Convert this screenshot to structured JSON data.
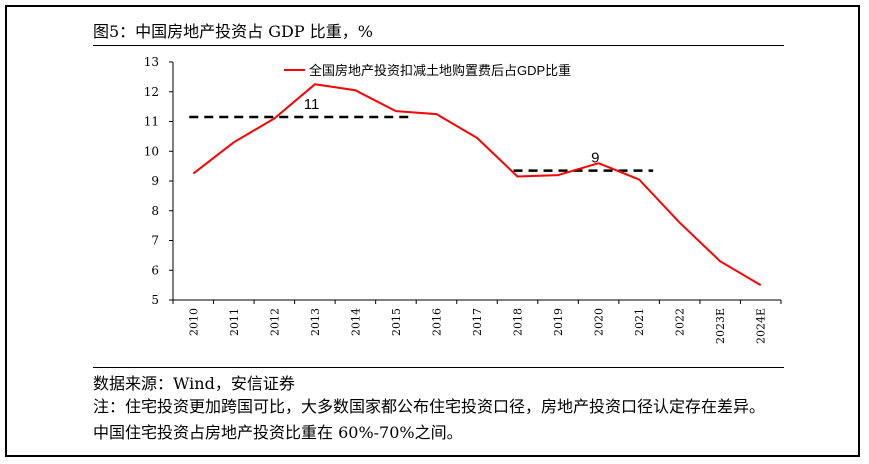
{
  "figure": {
    "title": "图5：中国房地产投资占 GDP 比重，%",
    "source": "数据来源：Wind，安信证券",
    "note": "注：住宅投资更加跨国可比，大多数国家都公布住宅投资口径，房地产投资口径认定存在差异。中国住宅投资占房地产投资比重在 60%-70%之间。"
  },
  "chart_data": {
    "type": "line",
    "title": "",
    "xlabel": "",
    "ylabel": "",
    "categories": [
      "2010",
      "2011",
      "2012",
      "2013",
      "2014",
      "2015",
      "2016",
      "2017",
      "2018",
      "2019",
      "2020",
      "2021",
      "2022",
      "2023E",
      "2024E"
    ],
    "series": [
      {
        "name": "全国房地产投资扣减土地购置费后占GDP比重",
        "color": "#ff0000",
        "values": [
          9.25,
          10.3,
          11.1,
          12.25,
          12.05,
          11.35,
          11.25,
          10.45,
          9.15,
          9.2,
          9.6,
          9.05,
          7.6,
          6.3,
          5.5
        ]
      }
    ],
    "ylim": [
      5,
      13
    ],
    "yticks": [
      5,
      6,
      7,
      8,
      9,
      10,
      11,
      12,
      13
    ],
    "grid": false,
    "legend": {
      "position": "top-center"
    },
    "reference_lines": [
      {
        "label": "11",
        "value": 11.15,
        "from": "2010",
        "to": "2015",
        "style": "dashed",
        "color": "#000000"
      },
      {
        "label": "9",
        "value": 9.35,
        "from": "2018",
        "to": "2021",
        "style": "dashed",
        "color": "#000000"
      }
    ]
  }
}
